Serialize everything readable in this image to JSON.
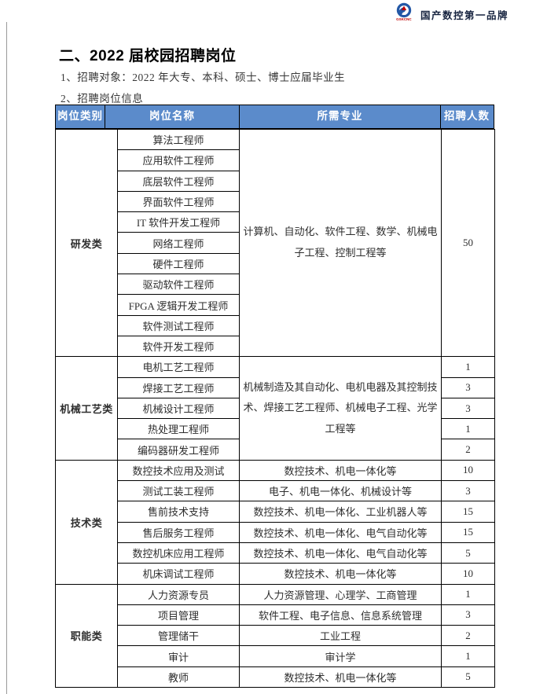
{
  "brand": {
    "logo_sub": "GSKCNC",
    "slogan": "国产数控第一品牌"
  },
  "heading": {
    "title": "二、2022 届校园招聘岗位",
    "line1": "1、招聘对象：2022 年大专、本科、硕士、博士应届毕业生",
    "line2": "2、招聘岗位信息"
  },
  "table": {
    "headers": [
      "岗位类别",
      "岗位名称",
      "所需专业",
      "招聘人数"
    ],
    "groups": [
      {
        "category": "研发类",
        "merged_major": "计算机、自动化、软件工程、数学、机械电子工程、控制工程等",
        "merged_count": "50",
        "rows": [
          {
            "name": "算法工程师"
          },
          {
            "name": "应用软件工程师"
          },
          {
            "name": "底层软件工程师"
          },
          {
            "name": "界面软件工程师"
          },
          {
            "name": "IT 软件开发工程师"
          },
          {
            "name": "网络工程师"
          },
          {
            "name": "硬件工程师"
          },
          {
            "name": "驱动软件工程师"
          },
          {
            "name": "FPGA 逻辑开发工程师"
          },
          {
            "name": "软件测试工程师"
          },
          {
            "name": "软件开发工程师"
          }
        ]
      },
      {
        "category": "机械工艺类",
        "merged_major": "机械制造及其自动化、电机电器及其控制技术、焊接工艺工程师、机械电子工程、光学工程等",
        "rows": [
          {
            "name": "电机工艺工程师",
            "count": "1"
          },
          {
            "name": "焊接工艺工程师",
            "count": "3"
          },
          {
            "name": "机械设计工程师",
            "count": "3"
          },
          {
            "name": "热处理工程师",
            "count": "1"
          },
          {
            "name": "编码器研发工程师",
            "count": "2"
          }
        ]
      },
      {
        "category": "技术类",
        "rows": [
          {
            "name": "数控技术应用及测试",
            "major": "数控技术、机电一体化等",
            "count": "10"
          },
          {
            "name": "测试工装工程师",
            "major": "电子、机电一体化、机械设计等",
            "count": "3"
          },
          {
            "name": "售前技术支持",
            "major": "数控技术、机电一体化、工业机器人等",
            "count": "15"
          },
          {
            "name": "售后服务工程师",
            "major": "数控技术、机电一体化、电气自动化等",
            "count": "15"
          },
          {
            "name": "数控机床应用工程师",
            "major": "数控技术、机电一体化、电气自动化等",
            "count": "5"
          },
          {
            "name": "机床调试工程师",
            "major": "数控技术、机电一体化等",
            "count": "10"
          }
        ]
      },
      {
        "category": "职能类",
        "rows": [
          {
            "name": "人力资源专员",
            "major": "人力资源管理、心理学、工商管理",
            "count": "1"
          },
          {
            "name": "项目管理",
            "major": "软件工程、电子信息、信息系统管理",
            "count": "3"
          },
          {
            "name": "管理储干",
            "major": "工业工程",
            "count": "2"
          },
          {
            "name": "审计",
            "major": "审计学",
            "count": "1"
          },
          {
            "name": "教师",
            "major": "数控技术、机电一体化等",
            "count": "5"
          }
        ]
      }
    ]
  },
  "colors": {
    "header_bg": "#5b8bcb",
    "header_text": "#ffffff",
    "border": "#000000",
    "logo_blue": "#2458a6",
    "logo_red": "#c00000",
    "slogan_text": "#16233f"
  }
}
